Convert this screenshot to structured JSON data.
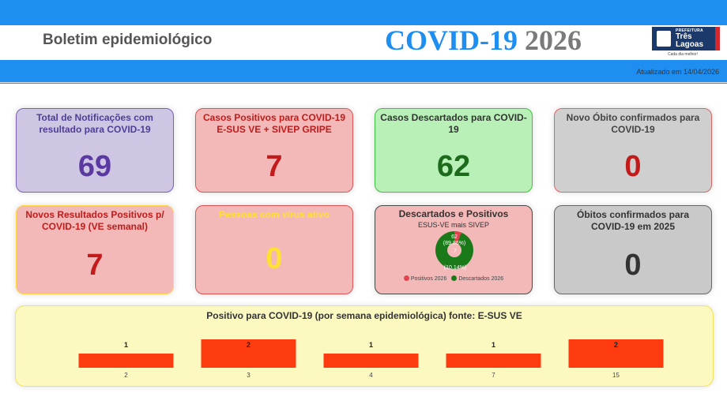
{
  "header": {
    "page_title": "Boletim epidemiológico",
    "big_title_part1": "COVID-19",
    "big_title_part2": "2026",
    "logo_line1": "PREFEITURA",
    "logo_line2": "Três Lagoas",
    "tagline": "Cada dia melhor!"
  },
  "updated": "Atualizado em 14/04/2026",
  "cards": {
    "total_notificacoes": {
      "label": "Total de Notificações com resultado para COVID-19",
      "value": "69"
    },
    "casos_positivos": {
      "label": "Casos Positivos para COVID-19 E-SUS VE + SIVEP GRIPE",
      "value": "7"
    },
    "casos_descartados": {
      "label": "Casos Descartados para COVID-19",
      "value": "62"
    },
    "novo_obito": {
      "label": "Novo Óbito confirmados para COVID-19",
      "value": "0"
    },
    "novos_positivos": {
      "label": "Novos Resultados Positivos p/ COVID-19 (VE semanal)",
      "value": "7"
    },
    "virus_ativo": {
      "label": "Pessoas com vírus ativo",
      "value": "0"
    },
    "obitos_2025": {
      "label": "Óbitos confirmados para COVID-19 em 2025",
      "value": "0"
    }
  },
  "pie_card": {
    "title": "Descartados e Positivos",
    "subtitle": "ESUS-VE mais SIVEP",
    "descartados_label": "62",
    "descartados_pct": "(89,86%)",
    "positivos_label": "7",
    "positivos_pct": "(10,14%)",
    "legend_positivos": "Positivos 2026",
    "legend_descartados": "Descartados 2026",
    "color_positivos": "#e0454f",
    "color_descartados": "#1a7a1a"
  },
  "chart_data": {
    "type": "bar",
    "title": "Positivo para COVID-19 (por semana epidemiológica) fonte: E-SUS VE",
    "categories": [
      "2",
      "3",
      "4",
      "7",
      "15"
    ],
    "values": [
      1,
      2,
      1,
      1,
      2
    ],
    "color": "#ff3b0f",
    "xlabel": "",
    "ylabel": ""
  },
  "colors": {
    "brand_blue": "#1f8ef1"
  }
}
